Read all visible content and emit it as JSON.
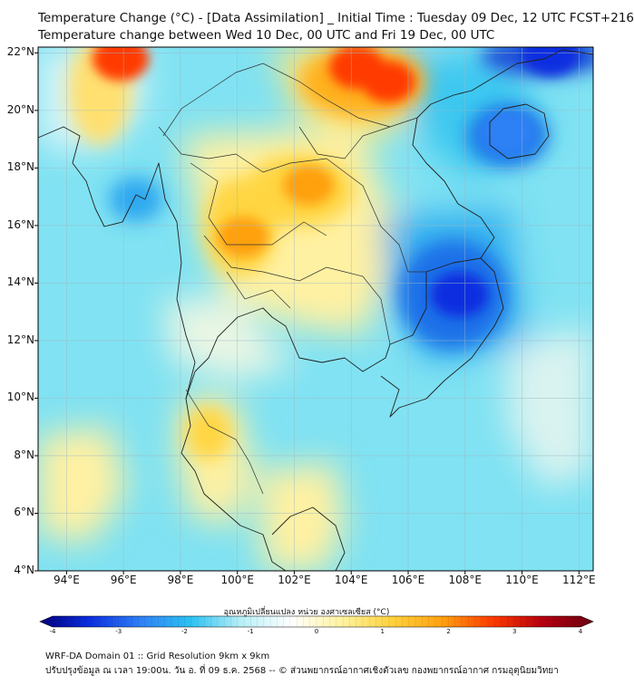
{
  "title": {
    "line1": "Temperature Change (°C) - [Data Assimilation] _ Initial Time : Tuesday 09 Dec, 12 UTC FCST+216",
    "line2": "Temperature change between Wed 10 Dec, 00 UTC and Fri 19 Dec, 00 UTC"
  },
  "map": {
    "extent": {
      "lon": [
        93,
        112.5
      ],
      "lat": [
        4,
        22.2
      ]
    },
    "lat_labels": [
      "22°N",
      "20°N",
      "18°N",
      "16°N",
      "14°N",
      "12°N",
      "10°N",
      "8°N",
      "6°N",
      "4°N"
    ],
    "lon_labels": [
      "94°E",
      "96°E",
      "98°E",
      "100°E",
      "102°E",
      "104°E",
      "106°E",
      "108°E",
      "110°E",
      "112°E"
    ],
    "background_color": "#80e2f2",
    "features": [
      {
        "name": "warm-northwest",
        "lon": 95.9,
        "lat": 21.8,
        "value": 2.8
      },
      {
        "name": "warm-north-vietnam",
        "lon": 104.2,
        "lat": 21.5,
        "value": 2.6
      },
      {
        "name": "warm-north-vietnam-east",
        "lon": 105.3,
        "lat": 21.0,
        "value": 2.3
      },
      {
        "name": "warm-north-thailand",
        "lon": 100.2,
        "lat": 15.6,
        "value": 2.1
      },
      {
        "name": "warm-northeast-thailand",
        "lon": 102.5,
        "lat": 17.4,
        "value": 2.0
      },
      {
        "name": "cool-hainan",
        "lon": 109.5,
        "lat": 19.2,
        "value": -2.6
      },
      {
        "name": "cool-northeast-corner",
        "lon": 111.0,
        "lat": 22.0,
        "value": -3.0
      },
      {
        "name": "cool-cambodia-vietnam",
        "lon": 107.8,
        "lat": 13.6,
        "value": -3.0
      }
    ]
  },
  "colorbar": {
    "label": "อุณหภูมิเปลี่ยนแปลง หน่วย องศาเซลเซียส (°C)",
    "ticks": [
      "-4",
      "-3",
      "-2",
      "-1",
      "0",
      "1",
      "2",
      "3",
      "4"
    ],
    "min": -4,
    "max": 4,
    "colors": [
      "#00007a",
      "#0d2fe0",
      "#2f80f5",
      "#2cc2f2",
      "#b8eff8",
      "#ffffff",
      "#fff3a0",
      "#ffd23c",
      "#ffa010",
      "#ff3a00",
      "#b30010",
      "#6a0010"
    ]
  },
  "footer": {
    "line1": "WRF-DA Domain 01 :: Grid Resolution 9km x 9km",
    "line2": "ปรับปรุงข้อมูล ณ เวลา 19:00น. วัน อ. ที่ 09 ธ.ค. 2568 -- © ส่วนพยากรณ์อากาศเชิงตัวเลข กองพยากรณ์อากาศ กรมอุตุนิยมวิทยา"
  }
}
